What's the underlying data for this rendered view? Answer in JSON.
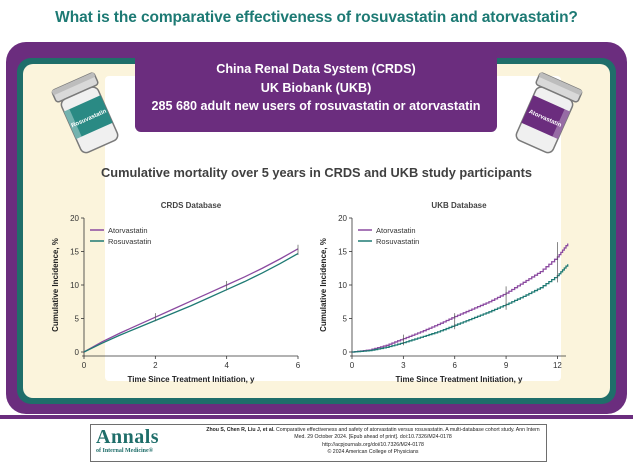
{
  "question": "What is the comparative effectiveness of rosuvastatin and atorvastatin?",
  "cohort_box": {
    "line1": "China Renal Data System (CRDS)",
    "line2": "UK Biobank (UKB)",
    "line3": "285 680 adult new users of rosuvastatin or atorvastatin"
  },
  "bottles": {
    "left_label": "Rosuvastatin",
    "right_label": "Atorvastatin"
  },
  "section_title": "Cumulative mortality over 5 years in CRDS and UKB study participants",
  "colors": {
    "atorvastatin": "#8b4aa0",
    "rosuvastatin": "#1f7a74",
    "purple": "#6b2d7e",
    "teal": "#1f6e6a"
  },
  "chart_data": [
    {
      "type": "line",
      "title": "CRDS Database",
      "xlabel": "Time Since Treatment Initiation, y",
      "ylabel": "Cumulative Incidence, %",
      "xlim": [
        0,
        6
      ],
      "ylim": [
        0,
        20
      ],
      "xticks": [
        0,
        2,
        4,
        6
      ],
      "yticks": [
        0,
        5,
        10,
        15,
        20
      ],
      "legend_position": "top-left",
      "series": [
        {
          "name": "Atorvastatin",
          "x": [
            0,
            0.5,
            1,
            1.5,
            2,
            2.5,
            3,
            3.5,
            4,
            4.5,
            5,
            5.5,
            6
          ],
          "y": [
            0,
            1.5,
            2.8,
            4.0,
            5.2,
            6.4,
            7.6,
            8.8,
            10.0,
            11.2,
            12.5,
            13.9,
            15.4
          ]
        },
        {
          "name": "Rosuvastatin",
          "x": [
            0,
            0.5,
            1,
            1.5,
            2,
            2.5,
            3,
            3.5,
            4,
            4.5,
            5,
            5.5,
            6
          ],
          "y": [
            0,
            1.3,
            2.5,
            3.6,
            4.7,
            5.8,
            6.9,
            8.1,
            9.3,
            10.5,
            11.8,
            13.2,
            14.7
          ]
        }
      ],
      "error_bars": [
        {
          "x": 2,
          "low": 4.6,
          "high": 5.8
        },
        {
          "x": 4,
          "low": 9.2,
          "high": 10.6
        },
        {
          "x": 6,
          "low": 14.5,
          "high": 16.0
        }
      ]
    },
    {
      "type": "line",
      "title": "UKB Database",
      "xlabel": "Time Since Treatment Initiation, y",
      "ylabel": "Cumulative Incidence, %",
      "xlim": [
        0,
        12.5
      ],
      "ylim": [
        0,
        20
      ],
      "xticks": [
        0,
        3,
        6,
        9,
        12
      ],
      "yticks": [
        0,
        5,
        10,
        15,
        20
      ],
      "legend_position": "top-left",
      "series": [
        {
          "name": "Atorvastatin",
          "x": [
            0,
            1,
            2,
            3,
            4,
            5,
            6,
            7,
            8,
            9,
            10,
            11,
            12,
            12.6
          ],
          "y": [
            0,
            0.3,
            1.0,
            2.0,
            3.0,
            4.1,
            5.3,
            6.4,
            7.5,
            8.8,
            10.4,
            12.0,
            14.2,
            16.2
          ]
        },
        {
          "name": "Rosuvastatin",
          "x": [
            0,
            1,
            2,
            3,
            4,
            5,
            6,
            7,
            8,
            9,
            10,
            11,
            12,
            12.6
          ],
          "y": [
            0,
            0.2,
            0.7,
            1.4,
            2.2,
            3.0,
            4.0,
            5.0,
            6.0,
            7.1,
            8.3,
            9.6,
            11.4,
            13.1
          ]
        }
      ],
      "error_bars": [
        {
          "x": 3,
          "low": 1.0,
          "high": 2.6
        },
        {
          "x": 6,
          "low": 3.4,
          "high": 5.8
        },
        {
          "x": 9,
          "low": 6.3,
          "high": 9.8
        },
        {
          "x": 12,
          "low": 10.4,
          "high": 16.4
        }
      ]
    }
  ],
  "citation": {
    "journal": "Annals",
    "journal_sub": "of Internal Medicine®",
    "authors": "Zhou S, Chen R, Liu J, et al.",
    "text": "Comparative effectiveness and safety of atorvastatin versus rosuvastatin. A multi-database cohort study. Ann Intern Med. 29 October 2024. [Epub ahead of print]. doi:10.7326/M24-0178",
    "url": "http://acpjournals.org/doi/10.7326/M24-0178",
    "copyright": "© 2024 American College of Physicians"
  }
}
